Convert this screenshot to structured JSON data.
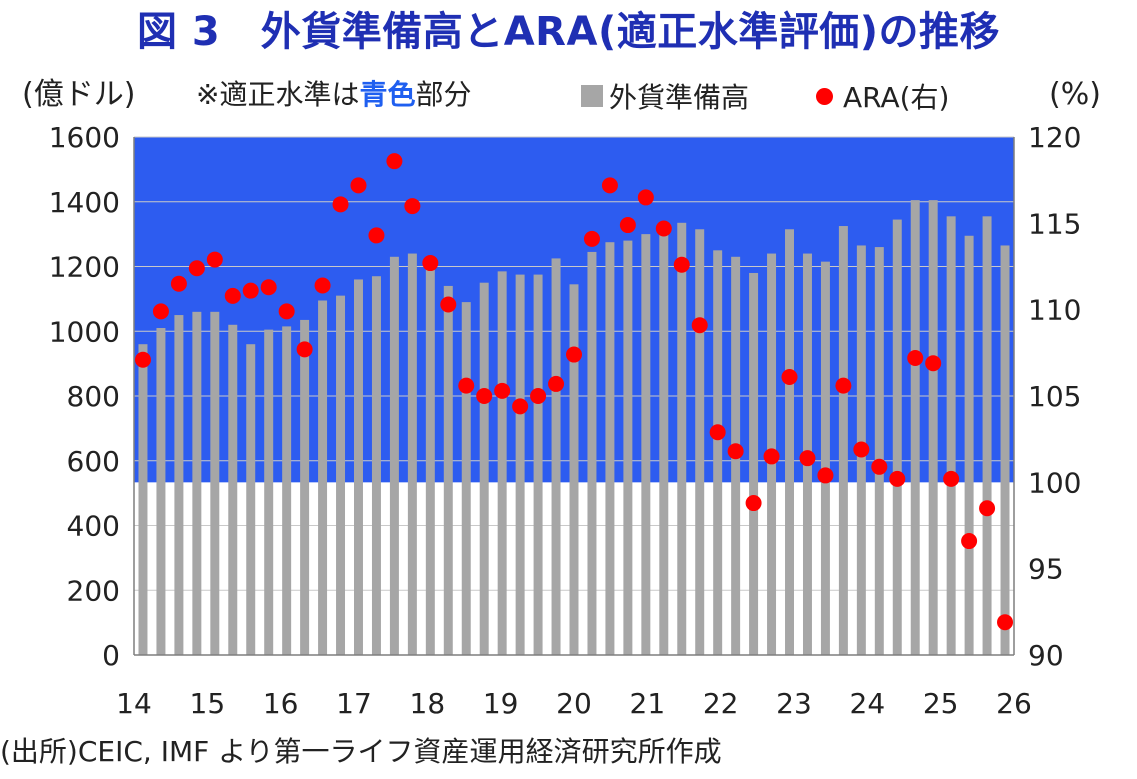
{
  "title": "図 3　外貨準備高とARA(適正水準評価)の推移",
  "left_unit": "(億ドル)",
  "right_unit": "(%)",
  "note": {
    "prefix": "※適正水準は",
    "highlight": "青色",
    "suffix": "部分"
  },
  "legend": {
    "bars_label": "外貨準備高",
    "dots_label": "ARA(右)"
  },
  "source": "(出所)CEIC, IMF より第一ライフ資産運用経済研究所作成",
  "colors": {
    "title": "#1f2fb3",
    "band": "#2d5cf0",
    "bars": "#a6a6a6",
    "dots": "#ff0000"
  },
  "chart_data": {
    "type": "bar",
    "secondary_type": "scatter",
    "left_axis": {
      "range": [
        0,
        1600
      ],
      "ticks": [
        "0",
        "200",
        "400",
        "600",
        "800",
        "1000",
        "1200",
        "1400",
        "1600"
      ]
    },
    "right_axis": {
      "range": [
        90,
        120
      ],
      "ticks": [
        "90",
        "95",
        "100",
        "105",
        "110",
        "115",
        "120"
      ]
    },
    "x_ticks": [
      "14",
      "15",
      "16",
      "17",
      "18",
      "19",
      "20",
      "21",
      "22",
      "23",
      "24",
      "25",
      "26"
    ],
    "band": {
      "axis": "right",
      "from": 100,
      "to": 120
    },
    "grid": true,
    "series": [
      {
        "name": "外貨準備高",
        "kind": "bar",
        "axis": "left",
        "values": [
          960,
          1010,
          1050,
          1060,
          1060,
          1020,
          960,
          1005,
          1015,
          1035,
          1095,
          1110,
          1160,
          1170,
          1230,
          1240,
          1195,
          1140,
          1090,
          1150,
          1185,
          1175,
          1175,
          1225,
          1145,
          1245,
          1275,
          1280,
          1300,
          1320,
          1335,
          1315,
          1250,
          1230,
          1180,
          1240,
          1315,
          1240,
          1215,
          1325,
          1265,
          1260,
          1345,
          1405,
          1405,
          1355,
          1295,
          1355,
          1265
        ]
      },
      {
        "name": "ARA(右)",
        "kind": "scatter",
        "axis": "right",
        "values": [
          107.1,
          109.9,
          111.5,
          112.4,
          112.9,
          110.8,
          111.1,
          111.3,
          109.9,
          107.7,
          111.4,
          116.1,
          117.2,
          114.3,
          118.6,
          116.0,
          112.7,
          110.3,
          105.6,
          105.0,
          105.3,
          104.4,
          105.0,
          105.7,
          107.4,
          114.1,
          117.2,
          114.9,
          116.5,
          114.7,
          112.6,
          109.1,
          102.9,
          101.8,
          98.8,
          101.5,
          106.1,
          101.4,
          100.4,
          105.6,
          101.9,
          100.9,
          100.2,
          107.2,
          106.9,
          100.2,
          96.6,
          98.5,
          91.9
        ]
      }
    ]
  }
}
